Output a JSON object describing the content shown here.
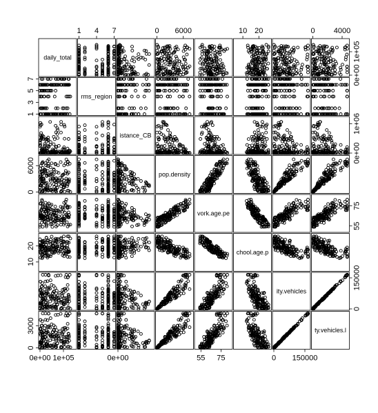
{
  "chart_data": {
    "type": "scatter",
    "variables": [
      "daily_total",
      "rms_region",
      "distance_CBD",
      "pop.density",
      "work.age.pe",
      "school.age.p",
      "ity.vehicles",
      "ty.vehicles.l"
    ],
    "diagonal_labels": [
      "daily_total",
      "rms_region",
      "istance_CB",
      "pop.density",
      "vork.age.pe",
      "chool.age.p",
      "ity.vehicles",
      "ty.vehicles.l"
    ],
    "ranges": [
      [
        0,
        150000
      ],
      [
        1,
        7
      ],
      [
        0,
        1200000
      ],
      [
        0,
        8000
      ],
      [
        50,
        85
      ],
      [
        5,
        27
      ],
      [
        0,
        170000
      ],
      [
        0,
        4800
      ]
    ],
    "ticks": {
      "top": [
        {
          "col": 1,
          "labels": [
            "1",
            "4",
            "7"
          ],
          "values": [
            1,
            4,
            7
          ]
        },
        {
          "col": 3,
          "labels": [
            "0",
            "6000"
          ],
          "values": [
            0,
            6000
          ]
        },
        {
          "col": 5,
          "labels": [
            "10",
            "20"
          ],
          "values": [
            10,
            20
          ]
        },
        {
          "col": 7,
          "labels": [
            "0",
            "4000"
          ],
          "values": [
            0,
            4000
          ]
        }
      ],
      "bottom": [
        {
          "col": 0,
          "labels": [
            "0e+00",
            "1e+05"
          ],
          "values": [
            0,
            100000
          ]
        },
        {
          "col": 2,
          "labels": [
            "0e+00"
          ],
          "values": [
            0
          ]
        },
        {
          "col": 4,
          "labels": [
            "55",
            "75"
          ],
          "values": [
            55,
            75
          ]
        },
        {
          "col": 6,
          "labels": [
            "0",
            "150000"
          ],
          "values": [
            0,
            150000
          ]
        }
      ],
      "left": [
        {
          "row": 1,
          "labels": [
            "1",
            "3",
            "5",
            "7"
          ],
          "values": [
            1,
            3,
            5,
            7
          ]
        },
        {
          "row": 3,
          "labels": [
            "0",
            "6000"
          ],
          "values": [
            0,
            6000
          ]
        },
        {
          "row": 5,
          "labels": [
            "10",
            "20"
          ],
          "values": [
            10,
            20
          ]
        },
        {
          "row": 7,
          "labels": [
            "0",
            "3000"
          ],
          "values": [
            0,
            3000
          ]
        }
      ],
      "right": [
        {
          "row": 0,
          "labels": [
            "0e+00",
            "1e+05"
          ],
          "values": [
            0,
            100000
          ]
        },
        {
          "row": 2,
          "labels": [
            "0e+00",
            "1e+06"
          ],
          "values": [
            0,
            1000000
          ]
        },
        {
          "row": 4,
          "labels": [
            "55",
            "75"
          ],
          "values": [
            55,
            75
          ]
        },
        {
          "row": 6,
          "labels": [
            "0",
            "150000"
          ],
          "values": [
            0,
            150000
          ]
        }
      ]
    },
    "marker": "open-circle",
    "marker_color": "#000000",
    "grid": false,
    "legend": "none"
  }
}
